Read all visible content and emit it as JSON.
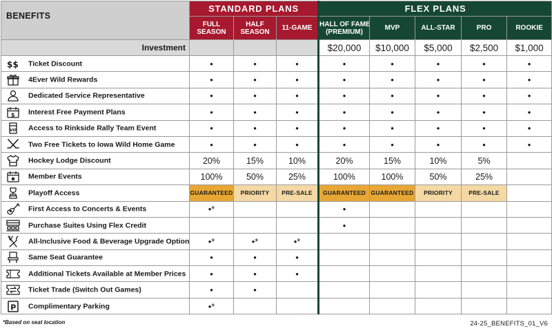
{
  "header": {
    "benefits_label": "BENEFITS",
    "standard_title": "STANDARD PLANS",
    "flex_title": "FLEX PLANS"
  },
  "columns": {
    "standard": [
      {
        "line1": "FULL",
        "line2": "SEASON"
      },
      {
        "line1": "HALF",
        "line2": "SEASON"
      },
      {
        "line1": "11-GAME",
        "line2": ""
      }
    ],
    "flex": [
      {
        "line1": "HALL OF FAME",
        "line2": "(PREMIUM)"
      },
      {
        "line1": "MVP",
        "line2": ""
      },
      {
        "line1": "ALL-STAR",
        "line2": ""
      },
      {
        "line1": "PRO",
        "line2": ""
      },
      {
        "line1": "ROOKIE",
        "line2": ""
      }
    ]
  },
  "investment": {
    "label": "Investment",
    "values": [
      "",
      "",
      "",
      "$20,000",
      "$10,000",
      "$5,000",
      "$2,500",
      "$1,000"
    ]
  },
  "rows": [
    {
      "label": "Ticket Discount",
      "icon": "dollar-icon",
      "cells": [
        "•",
        "•",
        "•",
        "•",
        "•",
        "•",
        "•",
        "•"
      ]
    },
    {
      "label": "4Ever Wild Rewards",
      "icon": "gift-icon",
      "cells": [
        "•",
        "•",
        "•",
        "•",
        "•",
        "•",
        "•",
        "•"
      ]
    },
    {
      "label": "Dedicated Service Representative",
      "icon": "person-icon",
      "cells": [
        "•",
        "•",
        "•",
        "•",
        "•",
        "•",
        "•",
        "•"
      ]
    },
    {
      "label": "Interest Free Payment Plans",
      "icon": "calendar-dollar-icon",
      "cells": [
        "•",
        "•",
        "•",
        "•",
        "•",
        "•",
        "•",
        "•"
      ]
    },
    {
      "label": "Access to Rinkside Rally Team Event",
      "icon": "vip-ticket-icon",
      "cells": [
        "•",
        "•",
        "•",
        "•",
        "•",
        "•",
        "•",
        "•"
      ]
    },
    {
      "label": "Two Free Tickets to Iowa Wild Home Game",
      "icon": "hockey-sticks-icon",
      "cells": [
        "•",
        "•",
        "•",
        "•",
        "•",
        "•",
        "•",
        "•"
      ]
    },
    {
      "label": "Hockey Lodge Discount",
      "icon": "jersey-icon",
      "cells": [
        "20%",
        "15%",
        "10%",
        "20%",
        "15%",
        "10%",
        "5%",
        ""
      ]
    },
    {
      "label": "Member Events",
      "icon": "calendar-star-icon",
      "cells": [
        "100%",
        "50%",
        "25%",
        "100%",
        "100%",
        "50%",
        "25%",
        ""
      ]
    },
    {
      "label": "Playoff Access",
      "icon": "trophy-icon",
      "cells": [
        "GUARANTEED",
        "PRIORITY",
        "PRE-SALE",
        "GUARANTEED",
        "GUARANTEED",
        "PRIORITY",
        "PRE-SALE",
        ""
      ],
      "tiers": [
        "gold",
        "light",
        "light",
        "gold",
        "gold",
        "light",
        "light",
        ""
      ]
    },
    {
      "label": "First Access to Concerts & Events",
      "icon": "guitar-icon",
      "cells": [
        "•*",
        "",
        "",
        "•",
        "",
        "",
        "",
        ""
      ]
    },
    {
      "label": "Purchase Suites Using Flex Credit",
      "icon": "suite-seats-icon",
      "cells": [
        "",
        "",
        "",
        "•",
        "",
        "",
        "",
        ""
      ]
    },
    {
      "label": "All-Inclusive Food & Beverage Upgrade Options",
      "icon": "utensils-icon",
      "cells": [
        "•*",
        "•*",
        "•*",
        "",
        "",
        "",
        "",
        ""
      ]
    },
    {
      "label": "Same Seat Guarantee",
      "icon": "seat-icon",
      "cells": [
        "•",
        "•",
        "•",
        "",
        "",
        "",
        "",
        ""
      ]
    },
    {
      "label": "Additional Tickets Available at Member Prices",
      "icon": "ticket-icon",
      "cells": [
        "•",
        "•",
        "•",
        "",
        "",
        "",
        "",
        ""
      ]
    },
    {
      "label": "Ticket Trade (Switch Out Games)",
      "icon": "ticket-swap-icon",
      "cells": [
        "•",
        "•",
        "",
        "",
        "",
        "",
        "",
        ""
      ]
    },
    {
      "label": "Complimentary Parking",
      "icon": "parking-icon",
      "cells": [
        "•*",
        "",
        "",
        "",
        "",
        "",
        "",
        ""
      ]
    }
  ],
  "footnote": "*Based on seat location",
  "doc_code": "24-25_BENEFITS_01_V6",
  "colors": {
    "standard": "#a6192e",
    "flex": "#154734",
    "gold_tier": "#e8a735",
    "light_tier": "#f5d9a4",
    "header_gray": "#cfcfcf"
  }
}
